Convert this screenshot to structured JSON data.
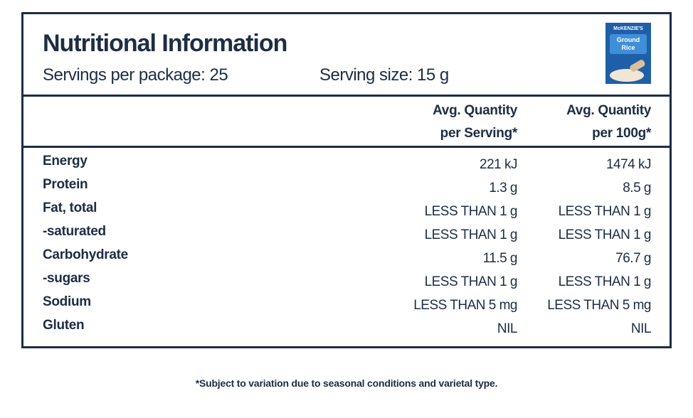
{
  "header": {
    "title": "Nutritional Information",
    "servings": "Servings per package: 25",
    "serving_size": "Serving size: 15 g",
    "product": {
      "brand": "McKENZIE'S",
      "name": [
        "Ground",
        "Rice"
      ]
    }
  },
  "table": {
    "columns": [
      [
        "Avg. Quantity",
        "per Serving*"
      ],
      [
        "Avg. Quantity",
        "per 100g*"
      ]
    ],
    "rows": [
      [
        "Energy",
        "221 kJ",
        "1474 kJ"
      ],
      [
        "Protein",
        "1.3 g",
        "8.5 g"
      ],
      [
        "Fat, total",
        "LESS THAN 1 g",
        "LESS THAN 1 g"
      ],
      [
        "-saturated",
        "LESS THAN 1 g",
        "LESS THAN 1 g"
      ],
      [
        "Carbohydrate",
        "11.5 g",
        "76.7 g"
      ],
      [
        "-sugars",
        "LESS THAN 1 g",
        "LESS THAN 1 g"
      ],
      [
        "Sodium",
        "LESS THAN 5 mg",
        "LESS THAN 5 mg"
      ],
      [
        "Gluten",
        "NIL",
        "NIL"
      ]
    ]
  },
  "footnote": "*Subject to variation due to seasonal conditions and varietal type."
}
